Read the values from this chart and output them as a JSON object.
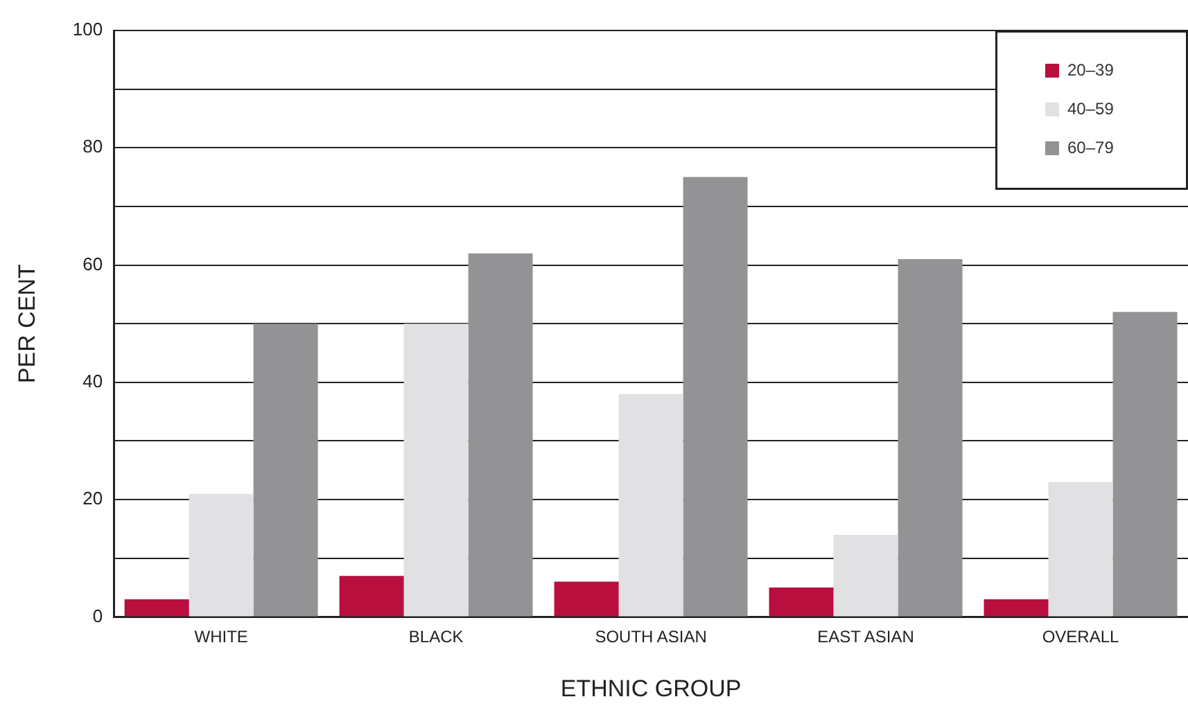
{
  "chart_data": {
    "type": "bar",
    "xlabel": "ETHNIC GROUP",
    "ylabel": "PER CENT",
    "categories": [
      "WHITE",
      "BLACK",
      "SOUTH ASIAN",
      "EAST ASIAN",
      "OVERALL"
    ],
    "series": [
      {
        "name": "20–39",
        "color": "#b80f3f",
        "values": [
          3,
          7,
          6,
          5,
          3
        ]
      },
      {
        "name": "40–59",
        "color": "#e1e1e3",
        "values": [
          21,
          50,
          38,
          14,
          23
        ]
      },
      {
        "name": "60–79",
        "color": "#939396",
        "values": [
          50,
          62,
          75,
          61,
          52
        ]
      }
    ],
    "ylim": [
      0,
      100
    ],
    "yticks": [
      0,
      {
        "value": 10,
        "label": null
      },
      20,
      {
        "value": 30,
        "label": null
      },
      40,
      {
        "value": 50,
        "label": null
      },
      60,
      {
        "value": 70,
        "label": null
      },
      80,
      {
        "value": 90,
        "label": null
      },
      100
    ],
    "grid": "y",
    "legend": "top right"
  }
}
